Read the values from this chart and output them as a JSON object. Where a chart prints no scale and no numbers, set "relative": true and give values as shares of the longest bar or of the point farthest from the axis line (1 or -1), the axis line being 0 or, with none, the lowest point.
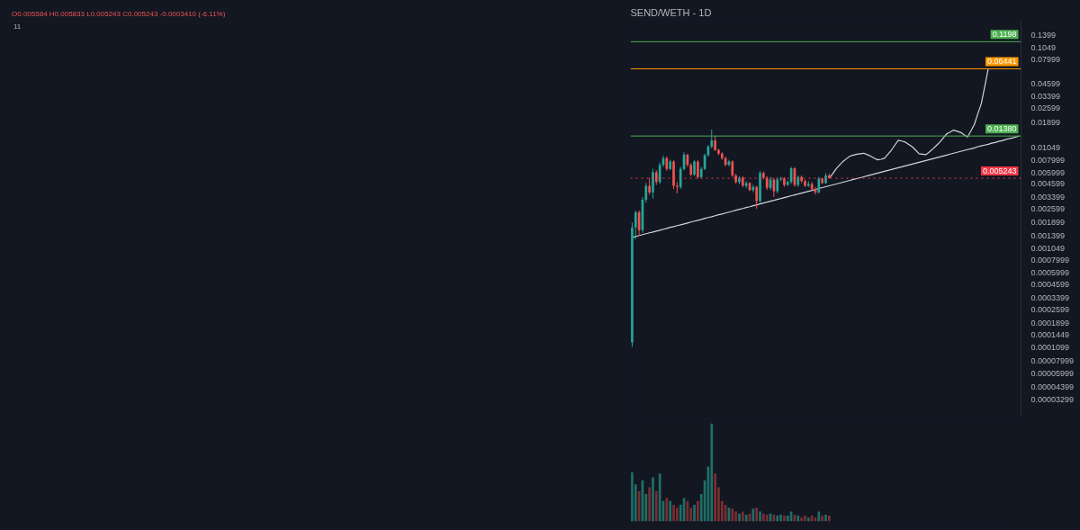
{
  "chart_data": [
    {
      "type": "candlestick",
      "title": "SEND/WETH - 1D",
      "annotations": [
        "11",
        "O0.005584 H0.005833 L0.005243 C0.005243 -0.0003410 (-6.11%)"
      ],
      "categories": [
        null,
        null,
        null,
        null,
        null,
        null,
        null,
        null,
        null,
        null,
        null,
        null,
        null,
        null,
        null,
        null,
        null,
        null,
        null,
        null,
        null,
        null,
        null,
        null,
        null,
        null,
        null,
        null,
        null,
        null,
        null,
        null,
        null,
        null,
        null,
        null,
        null,
        null,
        null,
        null,
        null,
        null,
        null,
        null,
        null,
        null,
        null,
        null,
        null,
        null,
        null,
        null,
        null,
        null,
        null,
        null,
        null,
        null,
        null,
        null,
        null,
        null,
        null,
        null,
        null,
        null,
        null,
        null,
        null,
        null,
        null,
        null,
        null,
        null,
        null,
        null,
        null,
        null,
        null,
        null,
        null,
        null,
        null,
        null,
        null,
        null,
        null,
        null,
        null,
        null,
        null,
        null,
        null,
        null,
        null,
        null,
        null,
        null,
        null,
        null,
        null,
        null,
        null,
        null,
        null,
        null,
        null,
        null,
        null,
        null,
        null,
        null,
        null
      ],
      "ohlc": [
        [
          0.000122,
          0.0019,
          0.00011,
          0.0017
        ],
        [
          0.0017,
          0.0025,
          0.0013,
          0.0024
        ],
        [
          0.0024,
          0.0025,
          0.0014,
          0.0016
        ],
        [
          0.0016,
          0.0034,
          0.0015,
          0.0032
        ],
        [
          0.0032,
          0.0047,
          0.003,
          0.0044
        ],
        [
          0.0044,
          0.0053,
          0.0036,
          0.0038
        ],
        [
          0.0038,
          0.0065,
          0.0033,
          0.006
        ],
        [
          0.006,
          0.0063,
          0.0045,
          0.0048
        ],
        [
          0.0048,
          0.0075,
          0.0046,
          0.0071
        ],
        [
          0.0071,
          0.0088,
          0.0068,
          0.0083
        ],
        [
          0.0083,
          0.0086,
          0.0062,
          0.0065
        ],
        [
          0.0065,
          0.008,
          0.0063,
          0.0077
        ],
        [
          0.0077,
          0.0079,
          0.0041,
          0.0044
        ],
        [
          0.0044,
          0.0048,
          0.0037,
          0.0043
        ],
        [
          0.0043,
          0.0068,
          0.0041,
          0.0065
        ],
        [
          0.0065,
          0.0095,
          0.0063,
          0.009
        ],
        [
          0.009,
          0.0092,
          0.0068,
          0.0071
        ],
        [
          0.0071,
          0.0074,
          0.0055,
          0.0057
        ],
        [
          0.0057,
          0.0079,
          0.0055,
          0.0077
        ],
        [
          0.0077,
          0.0079,
          0.0052,
          0.0054
        ],
        [
          0.0054,
          0.0068,
          0.0052,
          0.0065
        ],
        [
          0.0065,
          0.0092,
          0.0063,
          0.0089
        ],
        [
          0.0089,
          0.0112,
          0.0086,
          0.0108
        ],
        [
          0.0108,
          0.016,
          0.0104,
          0.0125
        ],
        [
          0.0125,
          0.0138,
          0.0098,
          0.01
        ],
        [
          0.01,
          0.0103,
          0.0089,
          0.0092
        ],
        [
          0.0092,
          0.0095,
          0.008,
          0.0083
        ],
        [
          0.0083,
          0.0086,
          0.0069,
          0.0071
        ],
        [
          0.0071,
          0.008,
          0.0069,
          0.0077
        ],
        [
          0.0077,
          0.0079,
          0.0054,
          0.0056
        ],
        [
          0.0056,
          0.0058,
          0.0046,
          0.0048
        ],
        [
          0.0048,
          0.0055,
          0.0046,
          0.0053
        ],
        [
          0.0053,
          0.0055,
          0.0043,
          0.0044
        ],
        [
          0.0044,
          0.0049,
          0.0042,
          0.0047
        ],
        [
          0.0047,
          0.0048,
          0.0039,
          0.004
        ],
        [
          0.004,
          0.0045,
          0.0038,
          0.0043
        ],
        [
          0.0043,
          0.0044,
          0.0026,
          0.0031
        ],
        [
          0.0031,
          0.0062,
          0.003,
          0.0059
        ],
        [
          0.0059,
          0.0061,
          0.0051,
          0.0053
        ],
        [
          0.0053,
          0.0055,
          0.004,
          0.0042
        ],
        [
          0.0042,
          0.0054,
          0.004,
          0.0051
        ],
        [
          0.0051,
          0.0053,
          0.0034,
          0.0039
        ],
        [
          0.0039,
          0.0053,
          0.0037,
          0.0051
        ],
        [
          0.0051,
          0.0054,
          0.0049,
          0.0052
        ],
        [
          0.0052,
          0.0054,
          0.0043,
          0.0045
        ],
        [
          0.0045,
          0.005,
          0.0044,
          0.0048
        ],
        [
          0.0048,
          0.0068,
          0.0046,
          0.0066
        ],
        [
          0.0066,
          0.0068,
          0.0043,
          0.0045
        ],
        [
          0.0045,
          0.0056,
          0.0043,
          0.0054
        ],
        [
          0.0054,
          0.0056,
          0.0047,
          0.0049
        ],
        [
          0.0049,
          0.0051,
          0.0043,
          0.0044
        ],
        [
          0.0044,
          0.0049,
          0.0043,
          0.0046
        ],
        [
          0.0046,
          0.0048,
          0.004,
          0.0041
        ],
        [
          0.0041,
          0.0043,
          0.0036,
          0.0038
        ],
        [
          0.0038,
          0.0054,
          0.0037,
          0.0052
        ],
        [
          0.0052,
          0.0053,
          0.0046,
          0.0047
        ],
        [
          0.0047,
          0.0059,
          0.0046,
          0.005584
        ],
        [
          0.005584,
          0.005833,
          0.005243,
          0.005243
        ],
        null,
        null,
        null,
        null,
        null,
        null,
        null,
        null,
        null,
        null,
        null,
        null,
        null,
        null,
        null,
        null,
        null,
        null,
        null,
        null,
        null,
        null,
        null,
        null,
        null,
        null,
        null,
        null,
        null,
        null,
        null,
        null,
        null,
        null,
        null,
        null,
        null,
        null,
        null,
        null,
        null,
        null,
        null,
        null,
        null,
        null,
        null,
        null,
        null,
        null,
        null,
        null,
        null,
        null,
        null
      ],
      "colors": [
        "#26a69a",
        "#26a69a",
        "#ef5350",
        "#26a69a",
        "#26a69a",
        "#ef5350",
        "#26a69a",
        "#ef5350",
        "#26a69a",
        "#26a69a",
        "#ef5350",
        "#26a69a",
        "#ef5350",
        "#ef5350",
        "#26a69a",
        "#26a69a",
        "#ef5350",
        "#ef5350",
        "#26a69a",
        "#ef5350",
        "#26a69a",
        "#26a69a",
        "#26a69a",
        "#26a69a",
        "#ef5350",
        "#ef5350",
        "#ef5350",
        "#ef5350",
        "#26a69a",
        "#ef5350",
        "#ef5350",
        "#26a69a",
        "#ef5350",
        "#26a69a",
        "#ef5350",
        "#26a69a",
        "#ef5350",
        "#26a69a",
        "#ef5350",
        "#ef5350",
        "#26a69a",
        "#ef5350",
        "#26a69a",
        "#26a69a",
        "#ef5350",
        "#26a69a",
        "#26a69a",
        "#ef5350",
        "#26a69a",
        "#ef5350",
        "#ef5350",
        "#26a69a",
        "#ef5350",
        "#ef5350",
        "#26a69a",
        "#ef5350",
        "#26a69a",
        "#ef5350",
        null,
        null,
        null,
        null,
        null,
        null,
        null,
        null,
        null,
        null,
        null,
        null,
        null,
        null,
        null,
        null,
        null,
        null,
        null,
        null,
        null,
        null,
        null,
        null,
        null,
        null,
        null,
        null,
        null,
        null,
        null,
        null,
        null,
        null,
        null,
        null,
        null,
        null,
        null,
        null,
        null,
        null,
        null,
        null,
        null,
        null,
        null,
        null,
        null,
        null,
        null,
        null,
        null,
        null,
        null
      ],
      "log": "y",
      "tick_labels": "y",
      "ylim": [
        2.2e-05,
        0.188
      ],
      "yticks": [
        {
          "value": 0.1399,
          "label": "0.1399"
        },
        {
          "value": 0.1049,
          "label": "0.1049"
        },
        {
          "value": 0.07999,
          "label": "0.07999"
        },
        {
          "value": 0.04599,
          "label": "0.04599"
        },
        {
          "value": 0.03399,
          "label": "0.03399"
        },
        {
          "value": 0.02599,
          "label": "0.02599"
        },
        {
          "value": 0.01899,
          "label": "0.01899"
        },
        {
          "value": 0.01049,
          "label": "0.01049"
        },
        {
          "value": 0.007999,
          "label": "0.007999"
        },
        {
          "value": 0.005999,
          "label": "0.005999"
        },
        {
          "value": 0.004599,
          "label": "0.004599"
        },
        {
          "value": 0.003399,
          "label": "0.003399"
        },
        {
          "value": 0.002599,
          "label": "0.002599"
        },
        {
          "value": 0.001899,
          "label": "0.001899"
        },
        {
          "value": 0.001399,
          "label": "0.001399"
        },
        {
          "value": 0.001049,
          "label": "0.001049"
        },
        {
          "value": 0.0007999,
          "label": "0.0007999"
        },
        {
          "value": 0.0005999,
          "label": "0.0005999"
        },
        {
          "value": 0.0004599,
          "label": "0.0004599"
        },
        {
          "value": 0.0003399,
          "label": "0.0003399"
        },
        {
          "value": 0.0002599,
          "label": "0.0002599"
        },
        {
          "value": 0.0001899,
          "label": "0.0001899"
        },
        {
          "value": 0.0001449,
          "label": "0.0001449"
        },
        {
          "value": 0.0001099,
          "label": "0.0001099"
        },
        {
          "value": 7.999e-05,
          "label": "0.00007999"
        },
        {
          "value": 5.999e-05,
          "label": "0.00005999"
        },
        {
          "value": 4.399e-05,
          "label": "0.00004399"
        },
        {
          "value": 3.299e-05,
          "label": "0.00003299"
        }
      ],
      "ref_lines": [
        {
          "axis": "y",
          "value": 0.1198,
          "label": "0.1198",
          "color": "#4caf50"
        },
        {
          "axis": "y",
          "value": 0.06441,
          "label": "0.06441",
          "color": "#ff9800"
        },
        {
          "axis": "y",
          "value": 0.0138,
          "label": "0.01380",
          "color": "#4caf50"
        },
        {
          "axis": "y",
          "value": 0.005243,
          "label": "0.005243",
          "color": "#f23645",
          "line_style": "dotted"
        }
      ]
    },
    {
      "type": "line",
      "color": "#d1d4dc",
      "log": "y",
      "ylim": [
        2.2e-05,
        0.188
      ],
      "categories": [
        null,
        null,
        null,
        null,
        null,
        null,
        null,
        null,
        null,
        null,
        null,
        null,
        null,
        null,
        null,
        null,
        null,
        null,
        null,
        null,
        null,
        null,
        null,
        null,
        null,
        null,
        null,
        null,
        null,
        null,
        null,
        null,
        null,
        null,
        null,
        null,
        null,
        null,
        null,
        null,
        null,
        null,
        null,
        null,
        null,
        null,
        null,
        null,
        null,
        null,
        null,
        null,
        null,
        null,
        null,
        null,
        null,
        null,
        null,
        null,
        null,
        null,
        null,
        null,
        null,
        null,
        null,
        null,
        null,
        null,
        null,
        null,
        null,
        null,
        null,
        null,
        null,
        null,
        null,
        null,
        null,
        null,
        null,
        null,
        null,
        null,
        null,
        null,
        null,
        null,
        null,
        null,
        null,
        null,
        null,
        null,
        null,
        null,
        null,
        null,
        null,
        null,
        null,
        null,
        null,
        null,
        null,
        null,
        null,
        null,
        null,
        null,
        null
      ],
      "values": [
        0.00135,
        0.00138,
        0.00141,
        0.00144,
        0.00147,
        0.0015,
        0.00153,
        0.00156,
        0.00159,
        0.00163,
        0.00166,
        0.0017,
        0.00173,
        0.00177,
        0.0018,
        0.00184,
        0.00188,
        0.00192,
        0.00196,
        0.002,
        0.00204,
        0.00209,
        0.00213,
        0.00217,
        0.00222,
        0.00227,
        0.00231,
        0.00236,
        0.00241,
        0.00246,
        0.00252,
        0.00257,
        0.00262,
        0.00268,
        0.00273,
        0.00279,
        0.00285,
        0.00291,
        0.00297,
        0.00303,
        0.0031,
        0.00316,
        0.00323,
        0.00329,
        0.00336,
        0.00343,
        0.00351,
        0.00358,
        0.00365,
        0.00373,
        0.00381,
        0.00389,
        0.00397,
        0.00406,
        0.00414,
        0.00423,
        0.00432,
        0.00441,
        0.0045,
        0.00459,
        0.00469,
        0.00479,
        0.00489,
        0.00499,
        0.0051,
        0.0052,
        0.00531,
        0.00542,
        0.00554,
        0.00565,
        0.00577,
        0.00589,
        0.00602,
        0.00614,
        0.00627,
        0.0064,
        0.00654,
        0.00667,
        0.00681,
        0.00696,
        0.0071,
        0.00725,
        0.0074,
        0.00756,
        0.00772,
        0.00788,
        0.00804,
        0.00821,
        0.00838,
        0.00856,
        0.00874,
        0.00892,
        0.00911,
        0.0093,
        0.0095,
        0.0097,
        0.0099,
        0.0101,
        0.0103,
        0.0105,
        0.0108,
        0.011,
        0.0112,
        0.0114,
        0.0117,
        0.0119,
        0.0122,
        0.0124,
        0.0127,
        0.013,
        0.0132,
        0.0135,
        0.0138
      ]
    },
    {
      "type": "line",
      "color": "#d1d4dc",
      "log": "y",
      "ylim": [
        2.2e-05,
        0.188
      ],
      "categories": [
        null,
        null,
        null,
        null,
        null,
        null,
        null,
        null,
        null,
        null,
        null,
        null,
        null,
        null,
        null,
        null,
        null,
        null,
        null,
        null,
        null,
        null,
        null,
        null,
        null,
        null,
        null,
        null,
        null,
        null,
        null,
        null,
        null,
        null,
        null,
        null,
        null,
        null,
        null,
        null,
        null,
        null,
        null,
        null,
        null,
        null,
        null,
        null,
        null,
        null,
        null,
        null,
        null,
        null,
        null,
        null,
        null,
        null,
        null,
        null,
        null,
        null,
        null,
        null,
        null,
        null,
        null,
        null,
        null,
        null,
        null,
        null,
        null,
        null,
        null,
        null,
        null,
        null,
        null,
        null,
        null,
        null,
        null,
        null,
        null,
        null,
        null,
        null,
        null,
        null,
        null,
        null,
        null,
        null,
        null,
        null,
        null,
        null,
        null,
        null,
        null,
        null,
        null,
        null,
        null,
        null,
        null,
        null,
        null,
        null,
        null,
        null,
        null
      ],
      "values": [
        null,
        null,
        null,
        null,
        null,
        null,
        null,
        null,
        null,
        null,
        null,
        null,
        null,
        null,
        null,
        null,
        null,
        null,
        null,
        null,
        null,
        null,
        null,
        null,
        null,
        null,
        null,
        null,
        null,
        null,
        null,
        null,
        null,
        null,
        null,
        null,
        null,
        null,
        null,
        null,
        null,
        null,
        null,
        null,
        null,
        null,
        null,
        null,
        null,
        null,
        null,
        null,
        null,
        null,
        null,
        null,
        null,
        0.005243,
        0.0058,
        0.0065,
        0.0071,
        0.0077,
        0.0082,
        0.0087,
        0.0089,
        0.0091,
        0.0092,
        0.0093,
        0.009,
        0.0087,
        0.0083,
        0.008,
        0.0081,
        0.0083,
        0.0091,
        0.01,
        0.0112,
        0.0125,
        0.0123,
        0.012,
        0.0114,
        0.0108,
        0.01,
        0.0092,
        0.0091,
        0.009,
        0.0096,
        0.0103,
        0.0111,
        0.012,
        0.0132,
        0.0145,
        0.0151,
        0.0158,
        0.0154,
        0.015,
        0.0142,
        0.0135,
        0.0155,
        0.018,
        0.023,
        0.029,
        0.043,
        0.06441,
        null,
        null,
        null,
        null,
        null,
        null,
        null,
        null,
        null
      ]
    },
    {
      "type": "bar",
      "relative": true,
      "categories": [
        null,
        null,
        null,
        null,
        null,
        null,
        null,
        null,
        null,
        null,
        null,
        null,
        null,
        null,
        null,
        null,
        null,
        null,
        null,
        null,
        null,
        null,
        null,
        null,
        null,
        null,
        null,
        null,
        null,
        null,
        null,
        null,
        null,
        null,
        null,
        null,
        null,
        null,
        null,
        null,
        null,
        null,
        null,
        null,
        null,
        null,
        null,
        null,
        null,
        null,
        null,
        null,
        null,
        null,
        null,
        null,
        null,
        null,
        null,
        null,
        null,
        null,
        null,
        null,
        null,
        null,
        null,
        null,
        null,
        null,
        null,
        null,
        null,
        null,
        null,
        null,
        null,
        null,
        null,
        null,
        null,
        null,
        null,
        null,
        null,
        null,
        null,
        null,
        null,
        null,
        null,
        null,
        null,
        null,
        null,
        null,
        null,
        null,
        null,
        null,
        null,
        null,
        null,
        null,
        null,
        null,
        null,
        null,
        null,
        null,
        null,
        null,
        null
      ],
      "values": [
        0.5,
        0.38,
        0.31,
        0.42,
        0.28,
        0.35,
        0.45,
        0.31,
        0.49,
        0.21,
        0.24,
        0.21,
        0.17,
        0.14,
        0.17,
        0.24,
        0.21,
        0.14,
        0.17,
        0.21,
        0.28,
        0.42,
        0.56,
        1,
        0.49,
        0.35,
        0.21,
        0.17,
        0.14,
        0.13,
        0.1,
        0.08,
        0.1,
        0.07,
        0.08,
        0.13,
        0.14,
        0.1,
        0.08,
        0.07,
        0.08,
        0.07,
        0.06,
        0.07,
        0.06,
        0.06,
        0.1,
        0.07,
        0.06,
        0.04,
        0.06,
        0.04,
        0.06,
        0.04,
        0.1,
        0.06,
        0.07,
        0.06,
        null,
        null,
        null,
        null,
        null,
        null,
        null,
        null,
        null,
        null,
        null,
        null,
        null,
        null,
        null,
        null,
        null,
        null,
        null,
        null,
        null,
        null,
        null,
        null,
        null,
        null,
        null,
        null,
        null,
        null,
        null,
        null,
        null,
        null,
        null,
        null,
        null,
        null,
        null,
        null,
        null,
        null,
        null,
        null,
        null,
        null,
        null,
        null,
        null,
        null,
        null,
        null,
        null,
        null,
        null
      ],
      "colors": [
        "#1f6f67",
        "#1f6f67",
        "#7a2e33",
        "#1f6f67",
        "#1f6f67",
        "#7a2e33",
        "#1f6f67",
        "#7a2e33",
        "#1f6f67",
        "#1f6f67",
        "#7a2e33",
        "#1f6f67",
        "#7a2e33",
        "#7a2e33",
        "#1f6f67",
        "#1f6f67",
        "#7a2e33",
        "#7a2e33",
        "#1f6f67",
        "#7a2e33",
        "#1f6f67",
        "#1f6f67",
        "#1f6f67",
        "#1f6f67",
        "#7a2e33",
        "#7a2e33",
        "#7a2e33",
        "#7a2e33",
        "#1f6f67",
        "#7a2e33",
        "#7a2e33",
        "#1f6f67",
        "#7a2e33",
        "#1f6f67",
        "#7a2e33",
        "#1f6f67",
        "#7a2e33",
        "#1f6f67",
        "#7a2e33",
        "#7a2e33",
        "#1f6f67",
        "#7a2e33",
        "#1f6f67",
        "#1f6f67",
        "#7a2e33",
        "#1f6f67",
        "#1f6f67",
        "#7a2e33",
        "#1f6f67",
        "#7a2e33",
        "#7a2e33",
        "#1f6f67",
        "#7a2e33",
        "#7a2e33",
        "#1f6f67",
        "#7a2e33",
        "#1f6f67",
        "#7a2e33",
        null,
        null,
        null,
        null,
        null,
        null,
        null,
        null,
        null,
        null,
        null,
        null,
        null,
        null,
        null,
        null,
        null,
        null,
        null,
        null,
        null,
        null,
        null,
        null,
        null,
        null,
        null,
        null,
        null,
        null,
        null,
        null,
        null,
        null,
        null,
        null,
        null,
        null,
        null,
        null,
        null,
        null,
        null,
        null,
        null,
        null,
        null,
        null,
        null,
        null,
        null,
        null,
        null,
        null,
        null
      ]
    }
  ]
}
